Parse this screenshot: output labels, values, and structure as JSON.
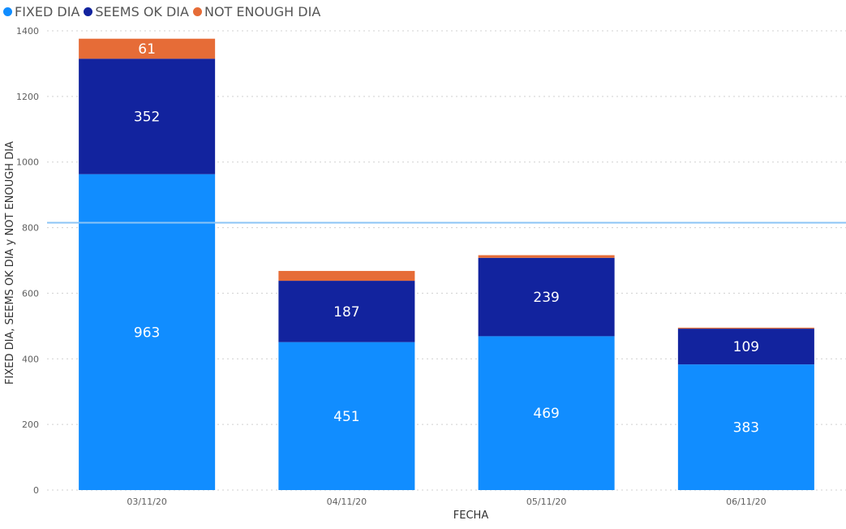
{
  "chart_data": {
    "type": "bar",
    "stacked": true,
    "title": "",
    "categories": [
      "03/11/20",
      "04/11/20",
      "05/11/20",
      "06/11/20"
    ],
    "series": [
      {
        "name": "FIXED DIA",
        "color": "#118DFF",
        "values": [
          963,
          451,
          469,
          383
        ],
        "labels": [
          "963",
          "451",
          "469",
          "383"
        ]
      },
      {
        "name": "SEEMS OK DIA",
        "color": "#12239E",
        "values": [
          352,
          187,
          239,
          109
        ],
        "labels": [
          "352",
          "187",
          "239",
          "109"
        ]
      },
      {
        "name": "NOT ENOUGH DIA",
        "color": "#E66C37",
        "values": [
          61,
          30,
          8,
          3
        ],
        "labels": [
          "61",
          "",
          "",
          ""
        ]
      }
    ],
    "xlabel": "FECHA",
    "ylabel": "FIXED DIA, SEEMS OK DIA y NOT ENOUGH DIA",
    "ylim": [
      0,
      1400
    ],
    "yticks": [
      0,
      200,
      400,
      600,
      800,
      1000,
      1200,
      1400
    ],
    "reference_line": {
      "value": 815,
      "color": "#8BC4F5"
    },
    "grid": true,
    "legend_position": "top-left"
  }
}
